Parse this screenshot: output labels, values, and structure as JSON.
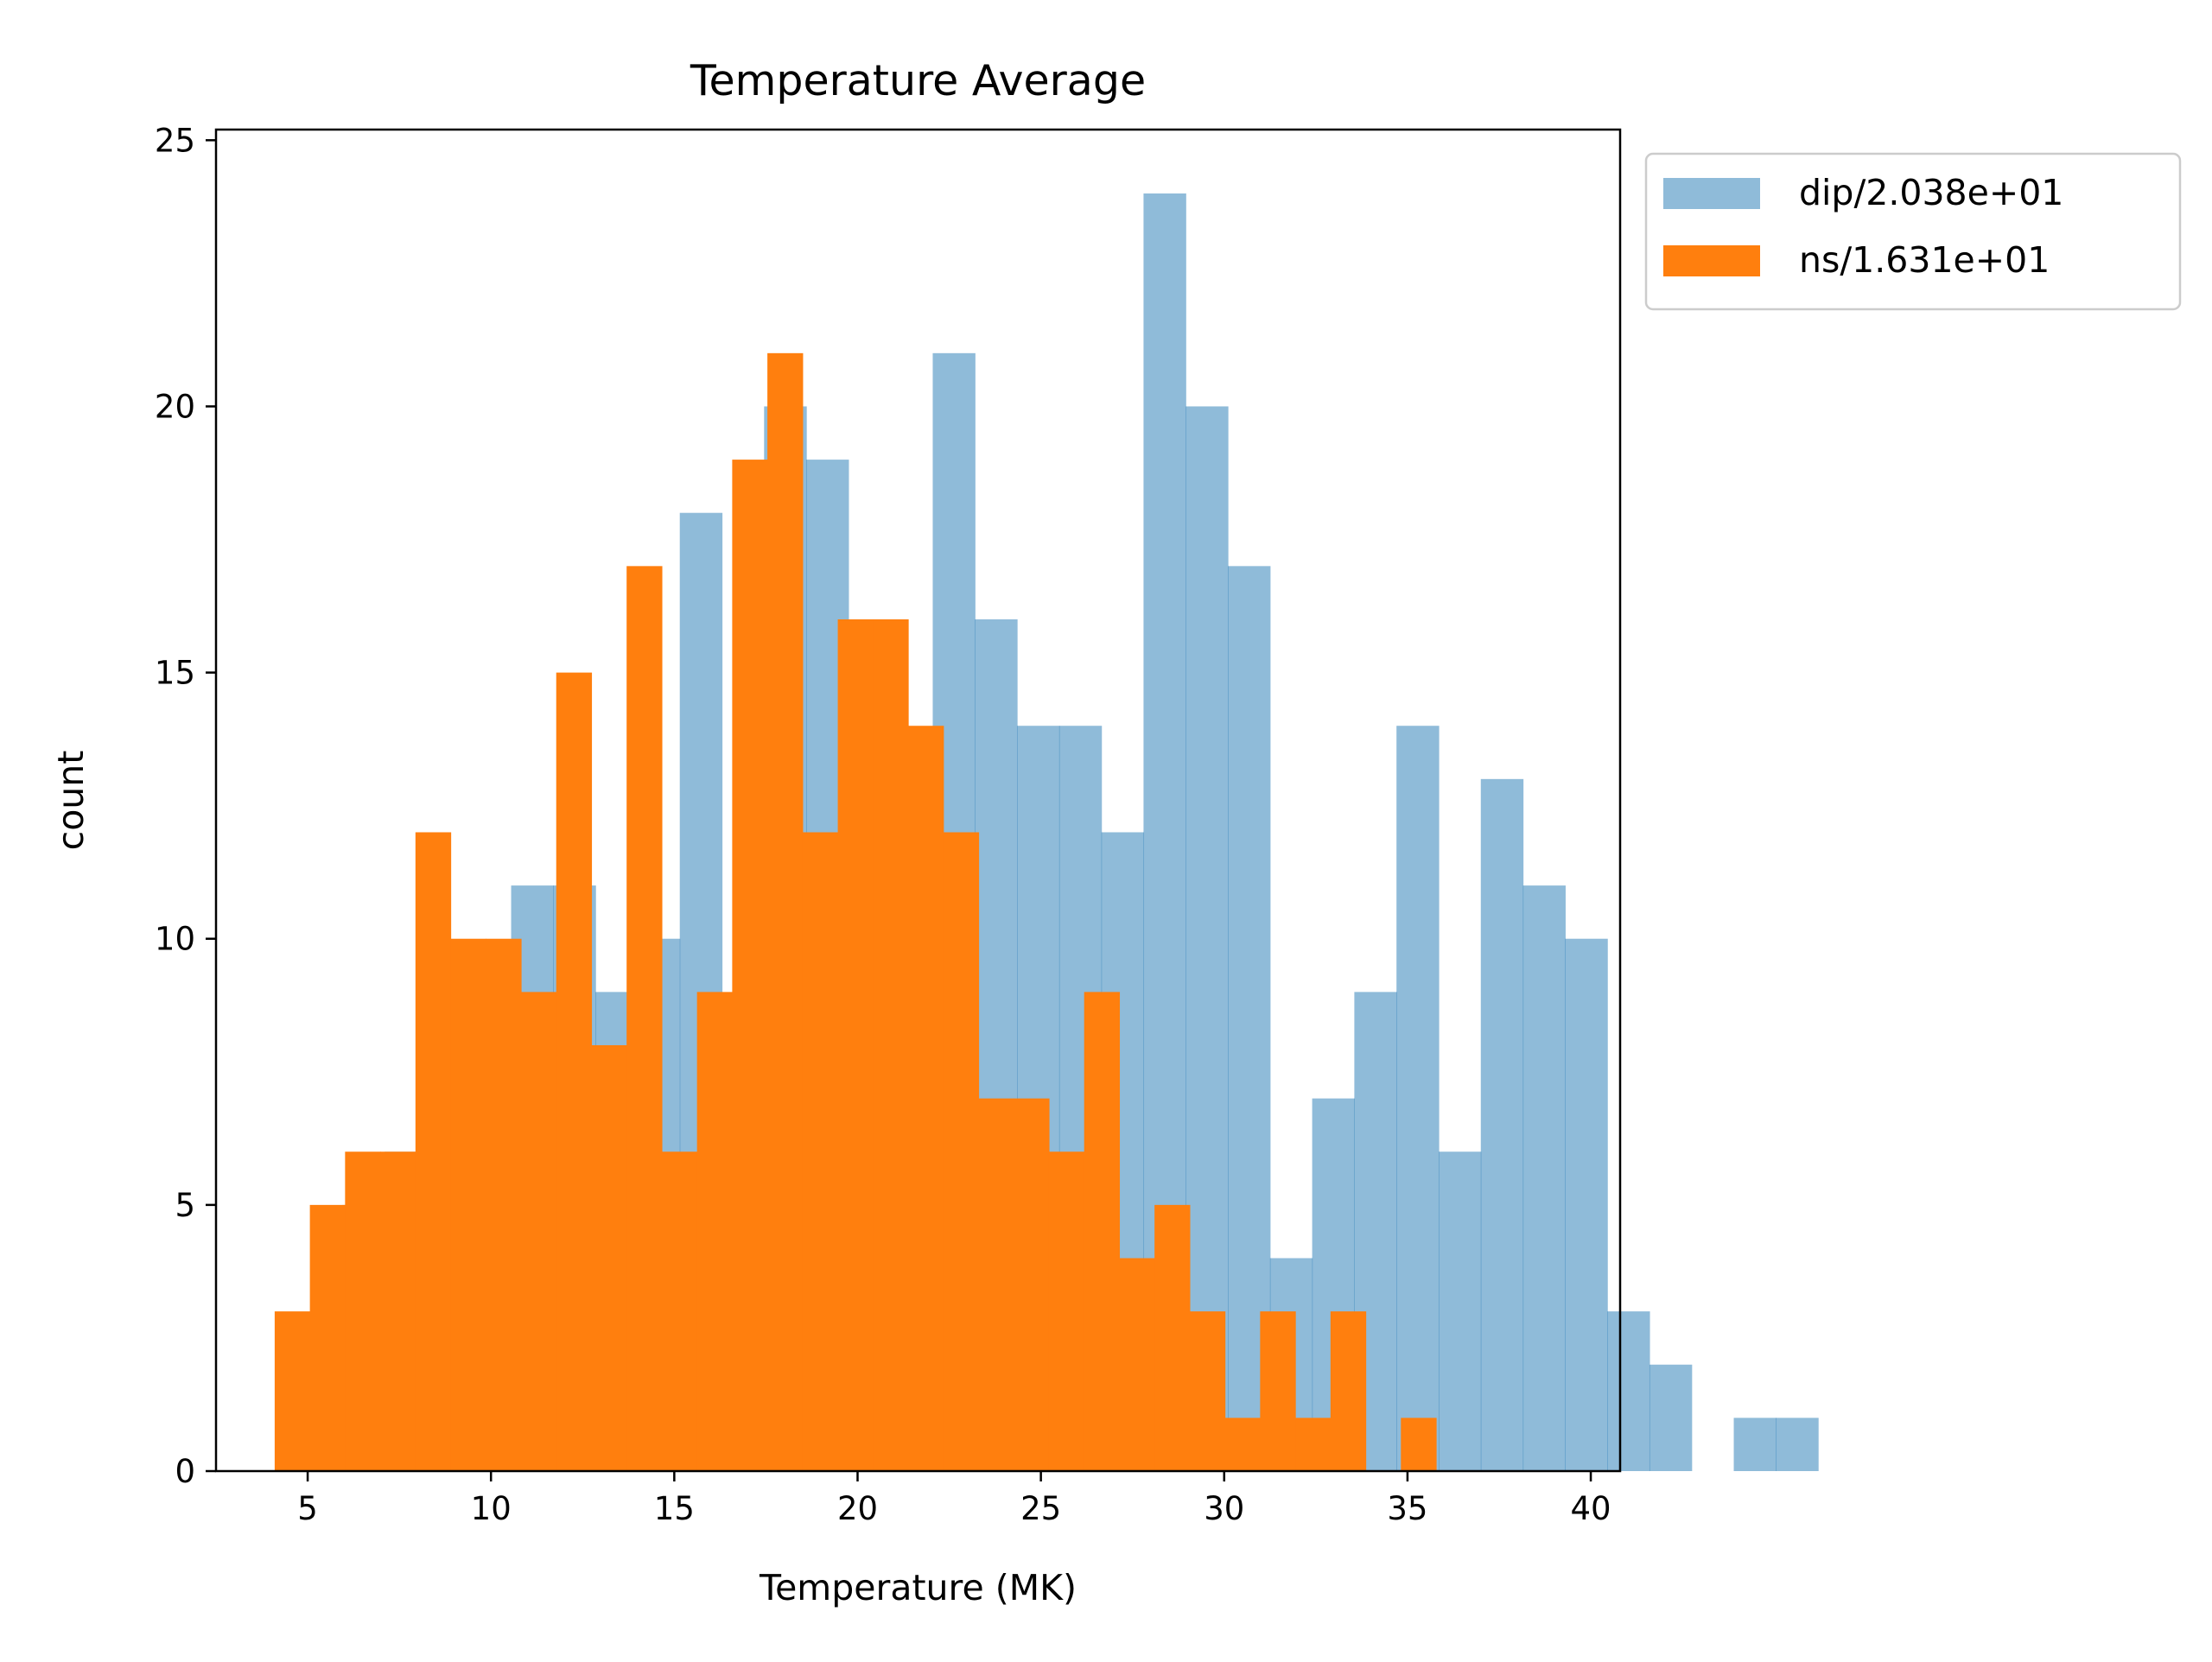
{
  "chart_data": {
    "type": "histogram",
    "title": "Temperature Average",
    "xlabel": "Temperature (MK)",
    "ylabel": "count",
    "xlim": [
      2.5,
      40.8
    ],
    "ylim": [
      0,
      25.2
    ],
    "xticks": [
      "5",
      "10",
      "15",
      "20",
      "25",
      "30",
      "35",
      "40"
    ],
    "xtick_values": [
      5,
      10,
      15,
      20,
      25,
      30,
      35,
      40
    ],
    "yticks": [
      "0",
      "5",
      "10",
      "15",
      "20",
      "25"
    ],
    "ytick_values": [
      0,
      5,
      10,
      15,
      20,
      25
    ],
    "grid": false,
    "legend_position": "outside top-right",
    "series": [
      {
        "name": "dip/2.038e+01",
        "color": "#1f77b4",
        "opacity": 0.5,
        "bin_start": 4.8,
        "bin_width": 1.15,
        "counts": [
          2,
          5,
          6,
          7,
          6,
          11,
          11,
          9,
          10,
          18,
          6,
          20,
          19,
          12,
          10,
          21,
          16,
          14,
          14,
          12,
          24,
          20,
          17,
          4,
          7,
          9,
          14,
          6,
          13,
          11,
          10,
          3,
          2,
          0,
          1,
          1
        ]
      },
      {
        "name": "ns/1.631e+01",
        "color": "#ff7f0e",
        "opacity": 1.0,
        "bin_start": 4.1,
        "bin_width": 0.96,
        "counts": [
          3,
          5,
          6,
          6,
          12,
          10,
          10,
          9,
          15,
          8,
          17,
          6,
          9,
          19,
          21,
          12,
          16,
          16,
          14,
          12,
          7,
          7,
          6,
          9,
          4,
          5,
          3,
          1,
          3,
          1,
          3,
          0,
          1
        ]
      }
    ]
  }
}
